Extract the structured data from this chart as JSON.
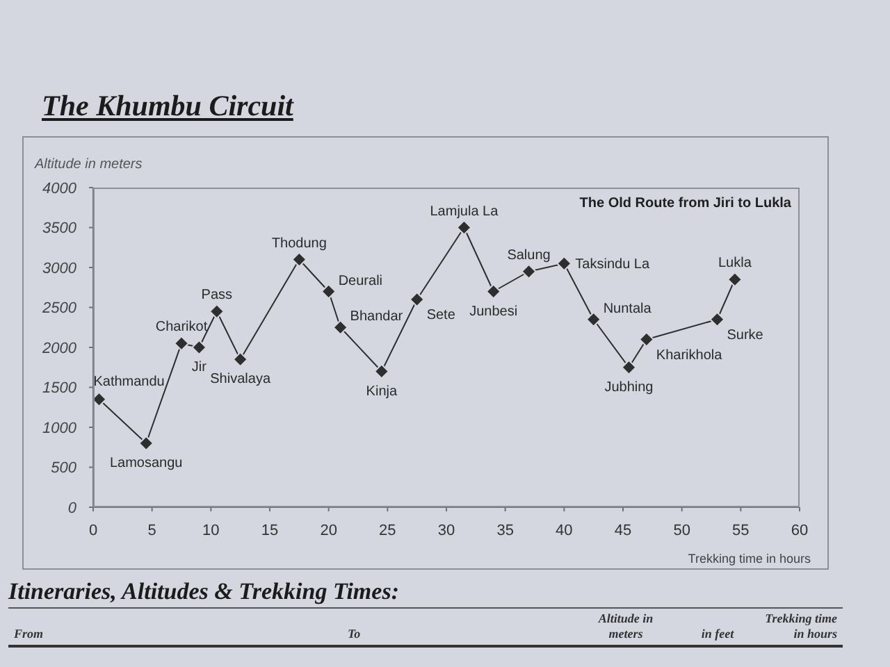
{
  "chart_data": {
    "type": "line",
    "title": "The Khumbu Circuit",
    "subtitle": "The Old Route from Jiri to Lukla",
    "xlabel": "Trekking time in hours",
    "ylabel": "Altitude in meters",
    "x": [
      0.5,
      4.5,
      7.5,
      9,
      10.5,
      12.5,
      17.5,
      20,
      21,
      24.5,
      27.5,
      31.5,
      34,
      37,
      40,
      42.5,
      45.5,
      47,
      53,
      54.5
    ],
    "values": [
      1350,
      800,
      2050,
      2000,
      2450,
      1850,
      3100,
      2700,
      2250,
      1700,
      2600,
      3500,
      2700,
      2950,
      3050,
      2350,
      1750,
      2100,
      2350,
      2850
    ],
    "color": "#2e2e2e",
    "marker": "diamond",
    "line_style": "solid",
    "xlim": [
      0,
      60
    ],
    "xticks": [
      0,
      5,
      10,
      15,
      20,
      25,
      30,
      35,
      40,
      45,
      50,
      55,
      60
    ],
    "ylim": [
      0,
      4000
    ],
    "yticks": [
      0,
      500,
      1000,
      1500,
      2000,
      2500,
      3000,
      3500,
      4000
    ],
    "annotations": [
      {
        "text": "Kathmandu",
        "x": 0.5,
        "y": 1350
      },
      {
        "text": "Lamosangu",
        "x": 4.5,
        "y": 800
      },
      {
        "text": "Charikot",
        "x": 7.5,
        "y": 2050
      },
      {
        "text": "Jir",
        "x": 9,
        "y": 2000
      },
      {
        "text": "Pass",
        "x": 10.5,
        "y": 2450
      },
      {
        "text": "Shivalaya",
        "x": 12.5,
        "y": 1850
      },
      {
        "text": "Thodung",
        "x": 17.5,
        "y": 3100
      },
      {
        "text": "Deurali",
        "x": 20,
        "y": 2700
      },
      {
        "text": "Bhandar",
        "x": 21,
        "y": 2250
      },
      {
        "text": "Kinja",
        "x": 24.5,
        "y": 1700
      },
      {
        "text": "Sete",
        "x": 27.5,
        "y": 2600
      },
      {
        "text": "Lamjula La",
        "x": 31.5,
        "y": 3500
      },
      {
        "text": "Junbesi",
        "x": 34,
        "y": 2700
      },
      {
        "text": "Salung",
        "x": 37,
        "y": 2950
      },
      {
        "text": "Taksindu La",
        "x": 40,
        "y": 3050
      },
      {
        "text": "Nuntala",
        "x": 42.5,
        "y": 2350
      },
      {
        "text": "Jubhing",
        "x": 45.5,
        "y": 1750
      },
      {
        "text": "Kharikhola",
        "x": 47,
        "y": 2100
      },
      {
        "text": "Surke",
        "x": 53,
        "y": 2350
      },
      {
        "text": "Lukla",
        "x": 54.5,
        "y": 2850
      },
      "Itineraries, Altitudes & Trekking Times:",
      "From",
      "To",
      "Altitude in meters",
      "in feet",
      "Trekking time in hours"
    ]
  }
}
